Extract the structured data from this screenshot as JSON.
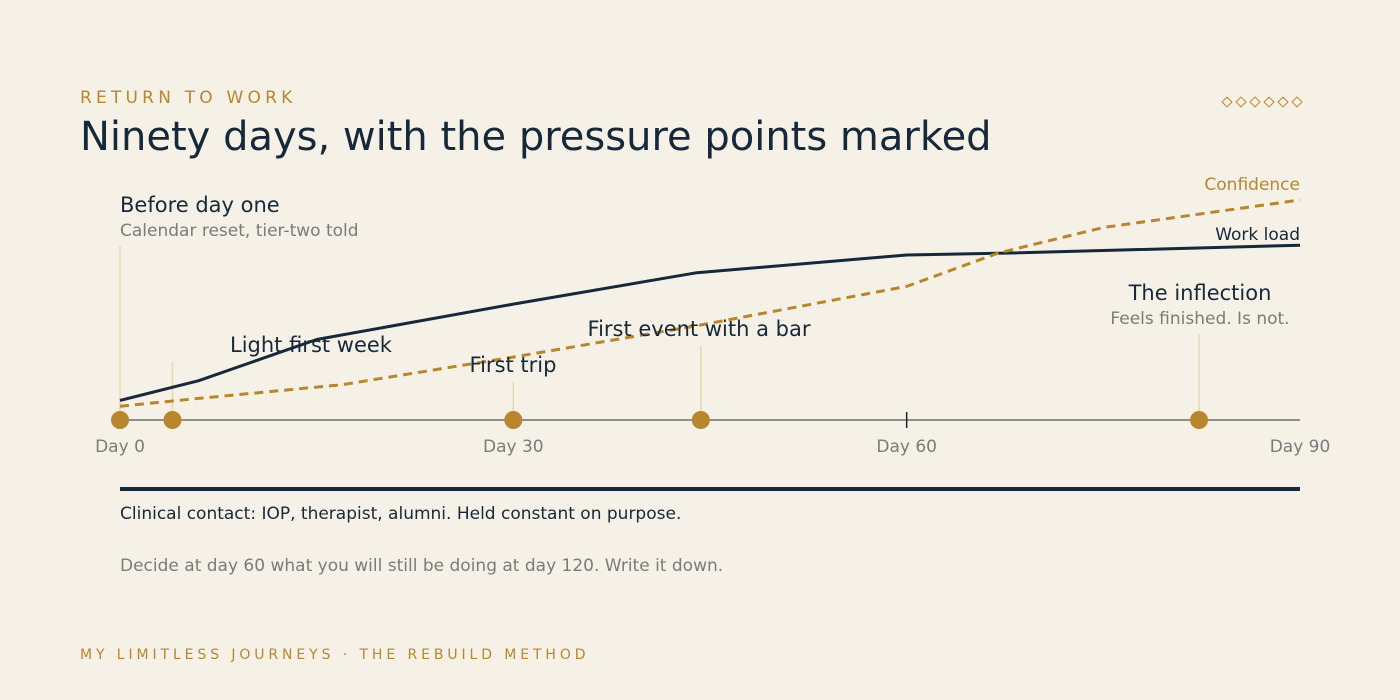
{
  "header": {
    "eyebrow": "RETURN TO WORK",
    "title": "Ninety days, with the pressure points marked",
    "ornament_icon": "diamond-icon",
    "ornament_count": 6
  },
  "colors": {
    "background": "#f6f1e7",
    "ink": "#16283a",
    "gold": "#b8862c",
    "muted": "#7b7b7b",
    "leader": "#e6d7b4"
  },
  "chart_data": {
    "type": "line",
    "xlim": [
      0,
      90
    ],
    "ylim": [
      0,
      1
    ],
    "x_ticks": [
      {
        "day": 0,
        "label": "Day 0"
      },
      {
        "day": 30,
        "label": "Day 30"
      },
      {
        "day": 60,
        "label": "Day 60"
      },
      {
        "day": 90,
        "label": "Day 90"
      }
    ],
    "series": [
      {
        "name": "Work load",
        "style": "solid",
        "color": "#16283a",
        "points": [
          [
            0,
            0.1
          ],
          [
            6,
            0.2
          ],
          [
            15,
            0.41
          ],
          [
            30,
            0.59
          ],
          [
            44,
            0.75
          ],
          [
            60,
            0.84
          ],
          [
            68,
            0.85
          ],
          [
            90,
            0.89
          ]
        ]
      },
      {
        "name": "Confidence",
        "style": "dashed",
        "color": "#b8862c",
        "points": [
          [
            0,
            0.07
          ],
          [
            6,
            0.11
          ],
          [
            17,
            0.18
          ],
          [
            30,
            0.32
          ],
          [
            44,
            0.48
          ],
          [
            60,
            0.68
          ],
          [
            67,
            0.85
          ],
          [
            75,
            0.98
          ],
          [
            90,
            1.12
          ]
        ]
      }
    ],
    "milestones": [
      {
        "day": 0,
        "label": "Before day one",
        "sublabel": "Calendar reset, tier-two told"
      },
      {
        "day": 4,
        "label": "Light first week",
        "sublabel": ""
      },
      {
        "day": 30,
        "label": "First trip",
        "sublabel": ""
      },
      {
        "day": 44.3,
        "label": "First event with a bar",
        "sublabel": ""
      },
      {
        "day": 82.3,
        "label": "The inflection",
        "sublabel": "Feels finished. Is not."
      }
    ]
  },
  "footer": {
    "constant_note": "Clinical contact: IOP, therapist, alumni. Held constant on purpose.",
    "advice": "Decide at day 60 what you will still be doing at day 120. Write it down.",
    "brand": "MY LIMITLESS JOURNEYS · THE REBUILD METHOD"
  }
}
